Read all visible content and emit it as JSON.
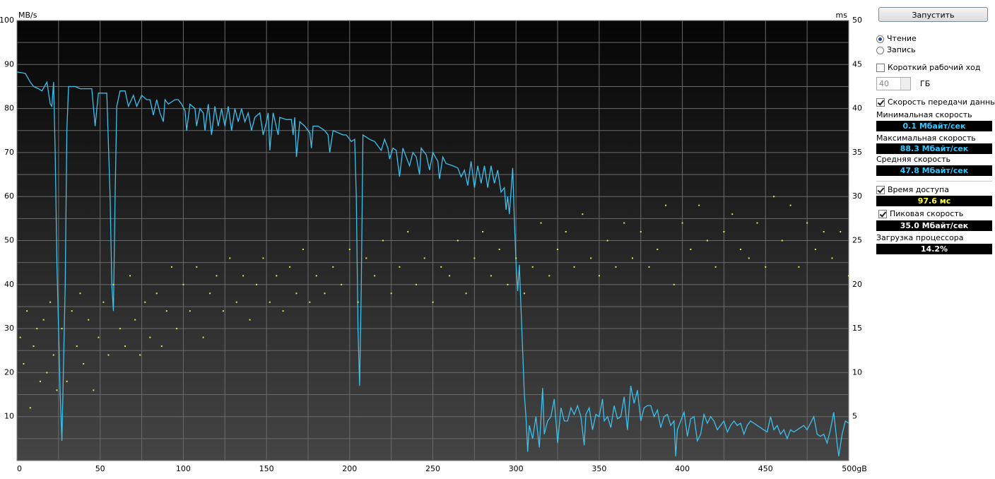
{
  "chart_data": {
    "type": "line",
    "y_label": "MB/s",
    "y2_label": "ms",
    "xlim": [
      0,
      500
    ],
    "ylim": [
      0,
      100
    ],
    "y2lim": [
      0,
      50
    ],
    "xticks": [
      0,
      50,
      100,
      150,
      200,
      250,
      300,
      350,
      400,
      450,
      {
        "value": 500,
        "label": "500gB"
      }
    ],
    "yticks": [
      10,
      20,
      30,
      40,
      50,
      60,
      70,
      80,
      90,
      100
    ],
    "y2ticks": [
      5,
      10,
      15,
      20,
      25,
      30,
      35,
      40,
      45,
      50
    ],
    "xgrid": [
      25,
      50,
      75,
      100,
      125,
      150,
      175,
      200,
      225,
      250,
      275,
      300,
      325,
      350,
      375,
      400,
      425,
      450,
      475
    ],
    "ygrid": [
      5,
      10,
      15,
      20,
      25,
      30,
      35,
      40,
      45,
      50,
      55,
      60,
      65,
      70,
      75,
      80,
      85,
      90,
      95
    ],
    "grid": true,
    "series": [
      {
        "type": "line",
        "color": "#3cc0ee",
        "axis": "y",
        "x": [
          0,
          5,
          8,
          10,
          13,
          15,
          18,
          20,
          21,
          22,
          23,
          24,
          26,
          27,
          29,
          30,
          31,
          35,
          38,
          45,
          47,
          49,
          54,
          56,
          57,
          58,
          59,
          60,
          62,
          65,
          67,
          70,
          72,
          75,
          78,
          80,
          82,
          84,
          86,
          88,
          89,
          91,
          95,
          97,
          99,
          101,
          102,
          104,
          107,
          108,
          110,
          112,
          113,
          115,
          117,
          119,
          121,
          123,
          125,
          127,
          129,
          131,
          133,
          135,
          137,
          139,
          141,
          143,
          146,
          148,
          150,
          151,
          152,
          154,
          157,
          158,
          162,
          165,
          166,
          167,
          168,
          170,
          173,
          175,
          176,
          177,
          178,
          181,
          183,
          185,
          187,
          188,
          190,
          193,
          196,
          198,
          201,
          203,
          204,
          205,
          206,
          207,
          208,
          212,
          215,
          217,
          219,
          221,
          223,
          224,
          226,
          228,
          230,
          232,
          234,
          236,
          238,
          240,
          242,
          243,
          246,
          248,
          250,
          253,
          254,
          256,
          258,
          262,
          265,
          267,
          269,
          271,
          273,
          275,
          277,
          279,
          281,
          283,
          285,
          287,
          289,
          291,
          293,
          294,
          295,
          296,
          297,
          298,
          299,
          300,
          301,
          302,
          304,
          305,
          306,
          307,
          308,
          310,
          312,
          314,
          316,
          317,
          319,
          321,
          323,
          325,
          327,
          329,
          331,
          333,
          335,
          337,
          339,
          341,
          342,
          344,
          346,
          348,
          350,
          352,
          353,
          355,
          357,
          359,
          361,
          363,
          365,
          367,
          369,
          371,
          373,
          375,
          377,
          379,
          381,
          383,
          385,
          387,
          389,
          391,
          393,
          395,
          396,
          397,
          399,
          401,
          403,
          405,
          407,
          409,
          411,
          413,
          415,
          417,
          419,
          421,
          423,
          425,
          427,
          429,
          431,
          433,
          435,
          437,
          439,
          441,
          443,
          445,
          447,
          449,
          451,
          453,
          455,
          457,
          459,
          461,
          463,
          465,
          467,
          469,
          471,
          473,
          475,
          477,
          479,
          481,
          483,
          485,
          487,
          489,
          491,
          493,
          494,
          496,
          498,
          500
        ],
        "values": [
          88.3,
          88,
          86,
          85,
          84.5,
          84,
          86,
          81,
          80.5,
          86,
          70,
          45,
          15,
          4.5,
          40,
          75,
          85,
          85,
          84.5,
          84.5,
          76,
          83.5,
          83.5,
          60,
          40,
          34,
          60,
          80.5,
          84,
          84,
          80.5,
          83,
          80.5,
          83,
          82,
          82,
          78.5,
          82,
          79,
          77,
          82,
          81,
          82,
          82,
          81,
          79.5,
          75,
          81,
          80,
          76,
          80,
          79,
          75,
          81,
          74,
          80.5,
          76,
          80,
          76,
          80.5,
          75,
          80,
          77,
          80,
          77,
          79,
          75,
          78,
          79,
          74,
          77,
          79,
          70.5,
          79,
          74,
          78,
          77.5,
          77.5,
          74,
          78,
          69,
          77,
          76,
          75,
          74.5,
          71,
          76,
          76,
          75.5,
          75,
          74,
          70,
          75,
          74.5,
          74,
          74,
          72.5,
          73,
          60,
          30,
          17,
          40,
          74,
          73,
          72.5,
          71.5,
          70.5,
          73,
          71,
          68.5,
          71,
          70.5,
          64.5,
          71,
          69,
          67,
          70,
          69,
          65,
          71,
          69.5,
          66,
          70,
          68,
          64,
          69,
          67.5,
          67,
          66.5,
          64.5,
          66,
          62.5,
          68,
          62,
          67,
          63,
          67,
          62,
          67,
          63,
          66,
          61,
          62,
          57,
          60,
          56,
          61,
          66.5,
          55,
          45,
          38.5,
          44.5,
          25,
          15,
          10,
          2,
          8,
          5,
          10,
          3,
          16.5,
          6,
          9,
          10,
          14,
          4,
          12,
          9,
          9,
          12,
          10.5,
          12.5,
          10,
          3.5,
          10.5,
          12,
          7,
          10.5,
          10,
          14,
          9,
          10,
          7.5,
          12.5,
          9.5,
          10,
          14.5,
          7,
          17,
          13,
          16,
          9,
          12,
          12.5,
          12.5,
          10,
          11.5,
          7.5,
          10,
          10.5,
          8,
          9,
          1,
          7,
          9,
          11,
          5.5,
          9.5,
          10,
          4.5,
          6,
          10.5,
          8.5,
          10,
          9,
          7,
          8,
          9,
          6.5,
          8,
          9,
          8,
          8.5,
          6,
          8,
          9,
          8.5,
          8,
          7.5,
          7,
          6.5,
          10,
          7,
          8,
          6,
          7,
          5,
          7,
          6.5,
          7,
          7.5,
          8,
          7,
          8.5,
          10,
          6,
          5.5,
          6,
          4,
          7,
          11,
          4,
          1,
          6,
          9,
          8.5
        ]
      },
      {
        "type": "scatter",
        "color": "#e8e84a",
        "axis": "y2",
        "x": [
          2,
          4,
          6,
          8,
          10,
          12,
          14,
          16,
          18,
          20,
          22,
          24,
          27,
          30,
          33,
          36,
          38,
          40,
          43,
          46,
          49,
          52,
          55,
          58,
          62,
          65,
          68,
          71,
          74,
          77,
          80,
          84,
          87,
          90,
          93,
          96,
          100,
          104,
          108,
          112,
          116,
          120,
          124,
          128,
          132,
          136,
          140,
          144,
          148,
          152,
          156,
          160,
          164,
          168,
          172,
          176,
          180,
          185,
          190,
          195,
          200,
          205,
          210,
          215,
          220,
          225,
          230,
          235,
          240,
          245,
          250,
          255,
          260,
          265,
          270,
          275,
          280,
          285,
          290,
          295,
          300,
          305,
          310,
          315,
          320,
          325,
          330,
          335,
          340,
          345,
          350,
          355,
          360,
          365,
          370,
          375,
          380,
          385,
          390,
          395,
          400,
          405,
          410,
          415,
          420,
          425,
          430,
          435,
          440,
          445,
          450,
          455,
          460,
          465,
          470,
          475,
          480,
          485,
          490,
          495,
          500
        ],
        "values": [
          14,
          11,
          17,
          6,
          13,
          15,
          9,
          16,
          10,
          18,
          12,
          8,
          15,
          9,
          17,
          13,
          19,
          11,
          16,
          8,
          14,
          18,
          12,
          20,
          15,
          13,
          21,
          16,
          12,
          18,
          14,
          19,
          13,
          17,
          22,
          15,
          20,
          17,
          22,
          14,
          19,
          21,
          17,
          23,
          18,
          21,
          16,
          20,
          23,
          18,
          21,
          17,
          22,
          19,
          24,
          18,
          21,
          19,
          22,
          20,
          24,
          18,
          23,
          21,
          25,
          19,
          22,
          26,
          20,
          23,
          18,
          22,
          21,
          25,
          19,
          23,
          26,
          21,
          24,
          20,
          23,
          19,
          22,
          27,
          21,
          24,
          26,
          22,
          28,
          23,
          21,
          25,
          22,
          27,
          23,
          26,
          22,
          24,
          29,
          20,
          27,
          24,
          29,
          25,
          22,
          26,
          28,
          24,
          23,
          27,
          22,
          30,
          25,
          29,
          22,
          27,
          24,
          26,
          23,
          26,
          21
        ]
      }
    ]
  },
  "panel": {
    "start_button": "Запустить",
    "mode": [
      {
        "label": "Чтение",
        "selected": true
      },
      {
        "label": "Запись",
        "selected": false
      }
    ],
    "short_stroke": {
      "label": "Короткий рабочий ход",
      "checked": false,
      "size": 40,
      "unit": "ГБ"
    },
    "transfer_rate": {
      "label": "Скорость передачи данных",
      "checked": true
    },
    "stats": [
      {
        "label": "Минимальная скорость",
        "value": "0.1 Мбайт/сек"
      },
      {
        "label": "Максимальная скорость",
        "value": "88.3 Мбайт/сек"
      },
      {
        "label": "Средняя скорость",
        "value": "47.8 Мбайт/сек"
      }
    ],
    "access_time": {
      "label": "Время доступа",
      "checked": true,
      "value": "97.6 мс"
    },
    "burst_rate": {
      "label": "Пиковая скорость",
      "checked": true,
      "value": "35.0 Мбайт/сек"
    },
    "cpu_usage": {
      "label": "Загрузка процессора",
      "value": "14.2%"
    }
  }
}
